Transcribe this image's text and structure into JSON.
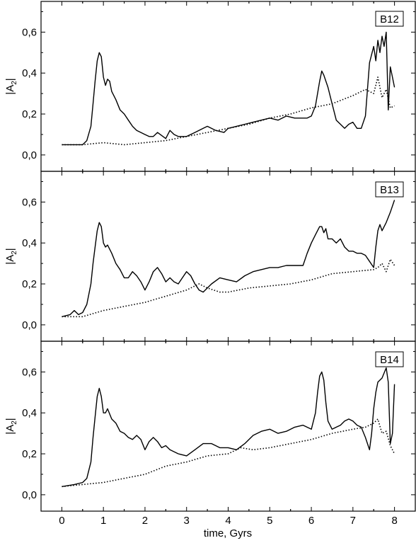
{
  "chart_data": {
    "type": "line",
    "xlabel": "time, Gyrs",
    "ylabel": "|A2|",
    "ylabel_main": "|A",
    "ylabel_sub": "2",
    "ylabel_close": "|",
    "xlim": [
      -0.5,
      8.5
    ],
    "ylim": [
      -0.08,
      0.75
    ],
    "x_ticks": [
      0,
      1,
      2,
      3,
      4,
      5,
      6,
      7,
      8
    ],
    "x_tick_labels": [
      "0",
      "1",
      "2",
      "3",
      "4",
      "5",
      "6",
      "7",
      "8"
    ],
    "y_ticks": [
      0.0,
      0.2,
      0.4,
      0.6
    ],
    "y_tick_labels": [
      "0,0",
      "0,2",
      "0,4",
      "0,6"
    ],
    "grid": false,
    "panels": [
      {
        "label": "B12",
        "series": [
          {
            "style": "solid",
            "x": [
              0.0,
              0.3,
              0.5,
              0.6,
              0.7,
              0.75,
              0.8,
              0.85,
              0.9,
              0.95,
              1.0,
              1.05,
              1.1,
              1.15,
              1.2,
              1.3,
              1.4,
              1.5,
              1.6,
              1.7,
              1.8,
              1.9,
              2.0,
              2.1,
              2.2,
              2.3,
              2.5,
              2.6,
              2.7,
              2.8,
              3.0,
              3.2,
              3.4,
              3.5,
              3.7,
              3.9,
              4.0,
              4.2,
              4.4,
              4.6,
              4.8,
              5.0,
              5.2,
              5.4,
              5.6,
              5.8,
              5.9,
              6.0,
              6.1,
              6.2,
              6.25,
              6.3,
              6.4,
              6.5,
              6.6,
              6.7,
              6.8,
              6.9,
              7.0,
              7.1,
              7.2,
              7.3,
              7.4,
              7.5,
              7.55,
              7.6,
              7.65,
              7.7,
              7.75,
              7.8,
              7.85,
              7.9,
              7.95,
              8.0
            ],
            "y": [
              0.05,
              0.05,
              0.05,
              0.07,
              0.14,
              0.25,
              0.36,
              0.46,
              0.5,
              0.48,
              0.38,
              0.34,
              0.37,
              0.36,
              0.31,
              0.27,
              0.22,
              0.2,
              0.17,
              0.14,
              0.12,
              0.11,
              0.1,
              0.09,
              0.09,
              0.11,
              0.08,
              0.12,
              0.1,
              0.09,
              0.09,
              0.11,
              0.13,
              0.14,
              0.12,
              0.11,
              0.13,
              0.14,
              0.15,
              0.16,
              0.17,
              0.18,
              0.17,
              0.19,
              0.18,
              0.18,
              0.18,
              0.19,
              0.24,
              0.36,
              0.41,
              0.39,
              0.33,
              0.25,
              0.17,
              0.15,
              0.13,
              0.15,
              0.16,
              0.13,
              0.13,
              0.19,
              0.45,
              0.53,
              0.46,
              0.56,
              0.5,
              0.58,
              0.53,
              0.6,
              0.22,
              0.43,
              0.38,
              0.33
            ]
          },
          {
            "style": "dotted",
            "x": [
              0.0,
              0.5,
              1.0,
              1.5,
              2.0,
              2.5,
              3.0,
              3.5,
              4.0,
              4.5,
              5.0,
              5.5,
              6.0,
              6.5,
              7.0,
              7.3,
              7.5,
              7.6,
              7.7,
              7.8,
              7.9,
              8.0
            ],
            "y": [
              0.05,
              0.05,
              0.06,
              0.05,
              0.06,
              0.07,
              0.09,
              0.11,
              0.13,
              0.15,
              0.18,
              0.2,
              0.23,
              0.25,
              0.29,
              0.32,
              0.3,
              0.38,
              0.28,
              0.32,
              0.23,
              0.24
            ]
          }
        ]
      },
      {
        "label": "B13",
        "series": [
          {
            "style": "solid",
            "x": [
              0.0,
              0.2,
              0.3,
              0.4,
              0.5,
              0.6,
              0.7,
              0.75,
              0.8,
              0.85,
              0.9,
              0.95,
              1.0,
              1.05,
              1.1,
              1.2,
              1.3,
              1.4,
              1.5,
              1.6,
              1.7,
              1.8,
              1.9,
              2.0,
              2.1,
              2.2,
              2.3,
              2.4,
              2.5,
              2.6,
              2.7,
              2.8,
              2.9,
              3.0,
              3.1,
              3.2,
              3.3,
              3.4,
              3.6,
              3.8,
              4.0,
              4.2,
              4.4,
              4.6,
              4.8,
              5.0,
              5.2,
              5.4,
              5.6,
              5.8,
              5.9,
              6.0,
              6.1,
              6.2,
              6.25,
              6.3,
              6.35,
              6.4,
              6.5,
              6.6,
              6.7,
              6.8,
              6.9,
              7.0,
              7.1,
              7.2,
              7.3,
              7.4,
              7.5,
              7.55,
              7.6,
              7.65,
              7.7,
              7.8,
              7.9,
              8.0
            ],
            "y": [
              0.04,
              0.05,
              0.07,
              0.05,
              0.06,
              0.1,
              0.2,
              0.3,
              0.38,
              0.46,
              0.5,
              0.48,
              0.4,
              0.38,
              0.39,
              0.35,
              0.3,
              0.27,
              0.23,
              0.23,
              0.26,
              0.24,
              0.21,
              0.17,
              0.21,
              0.26,
              0.28,
              0.25,
              0.21,
              0.23,
              0.21,
              0.2,
              0.23,
              0.26,
              0.24,
              0.2,
              0.17,
              0.16,
              0.2,
              0.23,
              0.22,
              0.21,
              0.24,
              0.26,
              0.27,
              0.28,
              0.28,
              0.29,
              0.29,
              0.29,
              0.35,
              0.4,
              0.44,
              0.48,
              0.48,
              0.45,
              0.47,
              0.42,
              0.42,
              0.4,
              0.42,
              0.38,
              0.36,
              0.36,
              0.35,
              0.35,
              0.34,
              0.31,
              0.28,
              0.38,
              0.46,
              0.49,
              0.46,
              0.5,
              0.55,
              0.61
            ]
          },
          {
            "style": "dotted",
            "x": [
              0.0,
              0.5,
              1.0,
              1.5,
              2.0,
              2.5,
              3.0,
              3.3,
              3.5,
              3.8,
              4.0,
              4.5,
              5.0,
              5.5,
              6.0,
              6.5,
              7.0,
              7.5,
              7.6,
              7.7,
              7.8,
              7.9,
              8.0
            ],
            "y": [
              0.04,
              0.04,
              0.07,
              0.09,
              0.11,
              0.14,
              0.17,
              0.2,
              0.18,
              0.16,
              0.16,
              0.18,
              0.19,
              0.2,
              0.22,
              0.25,
              0.26,
              0.27,
              0.28,
              0.3,
              0.26,
              0.32,
              0.29
            ]
          }
        ]
      },
      {
        "label": "B14",
        "series": [
          {
            "style": "solid",
            "x": [
              0.0,
              0.3,
              0.5,
              0.6,
              0.7,
              0.75,
              0.8,
              0.85,
              0.9,
              0.95,
              1.0,
              1.05,
              1.1,
              1.2,
              1.3,
              1.4,
              1.5,
              1.6,
              1.7,
              1.8,
              1.9,
              2.0,
              2.1,
              2.2,
              2.3,
              2.4,
              2.5,
              2.6,
              2.8,
              3.0,
              3.2,
              3.4,
              3.6,
              3.8,
              4.0,
              4.2,
              4.4,
              4.6,
              4.8,
              5.0,
              5.2,
              5.4,
              5.6,
              5.8,
              6.0,
              6.1,
              6.15,
              6.2,
              6.25,
              6.3,
              6.35,
              6.4,
              6.5,
              6.6,
              6.7,
              6.8,
              6.9,
              7.0,
              7.1,
              7.2,
              7.3,
              7.35,
              7.4,
              7.45,
              7.5,
              7.55,
              7.6,
              7.7,
              7.8,
              7.85,
              7.9,
              7.95,
              8.0
            ],
            "y": [
              0.04,
              0.05,
              0.06,
              0.08,
              0.16,
              0.28,
              0.38,
              0.48,
              0.52,
              0.48,
              0.4,
              0.4,
              0.42,
              0.37,
              0.35,
              0.31,
              0.3,
              0.28,
              0.27,
              0.29,
              0.27,
              0.22,
              0.26,
              0.28,
              0.26,
              0.23,
              0.24,
              0.22,
              0.2,
              0.19,
              0.22,
              0.25,
              0.25,
              0.23,
              0.23,
              0.22,
              0.25,
              0.29,
              0.31,
              0.32,
              0.3,
              0.31,
              0.33,
              0.34,
              0.32,
              0.4,
              0.5,
              0.58,
              0.6,
              0.56,
              0.45,
              0.36,
              0.32,
              0.33,
              0.34,
              0.36,
              0.37,
              0.36,
              0.34,
              0.33,
              0.28,
              0.25,
              0.22,
              0.3,
              0.42,
              0.5,
              0.55,
              0.57,
              0.62,
              0.55,
              0.25,
              0.3,
              0.54
            ]
          },
          {
            "style": "dotted",
            "x": [
              0.0,
              0.5,
              1.0,
              1.5,
              2.0,
              2.5,
              3.0,
              3.5,
              4.0,
              4.3,
              4.6,
              5.0,
              5.5,
              6.0,
              6.5,
              7.0,
              7.3,
              7.5,
              7.6,
              7.7,
              7.8,
              7.9,
              8.0
            ],
            "y": [
              0.04,
              0.05,
              0.06,
              0.08,
              0.1,
              0.14,
              0.16,
              0.19,
              0.2,
              0.23,
              0.22,
              0.23,
              0.25,
              0.27,
              0.3,
              0.32,
              0.33,
              0.35,
              0.37,
              0.3,
              0.31,
              0.24,
              0.2
            ]
          }
        ]
      }
    ]
  }
}
